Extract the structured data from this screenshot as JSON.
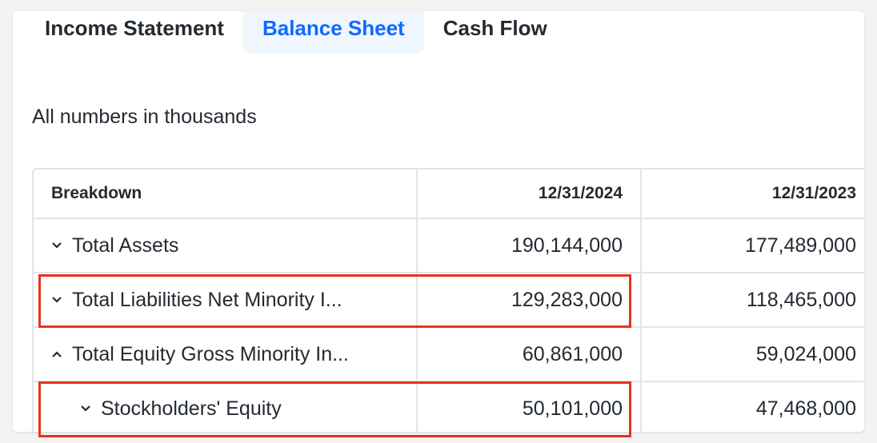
{
  "tabs": [
    {
      "label": "Income Statement",
      "active": false
    },
    {
      "label": "Balance Sheet",
      "active": true
    },
    {
      "label": "Cash Flow",
      "active": false
    }
  ],
  "note": "All numbers in thousands",
  "table": {
    "headers": [
      "Breakdown",
      "12/31/2024",
      "12/31/2023"
    ],
    "rows": [
      {
        "label": "Total Assets",
        "values": [
          "190,144,000",
          "177,489,000"
        ],
        "icon": "chevron-down-icon"
      },
      {
        "label": "Total Liabilities Net Minority I...",
        "values": [
          "129,283,000",
          "118,465,000"
        ],
        "icon": "chevron-down-icon"
      },
      {
        "label": "Total Equity Gross Minority In...",
        "values": [
          "60,861,000",
          "59,024,000"
        ],
        "icon": "chevron-up-icon"
      },
      {
        "label": "Stockholders' Equity",
        "values": [
          "50,101,000",
          "47,468,000"
        ],
        "icon": "chevron-down-icon"
      }
    ]
  },
  "colors": {
    "accent": "#0f69ff",
    "active_tab_bg": "#f0f6fe",
    "highlight": "#e8321e"
  }
}
